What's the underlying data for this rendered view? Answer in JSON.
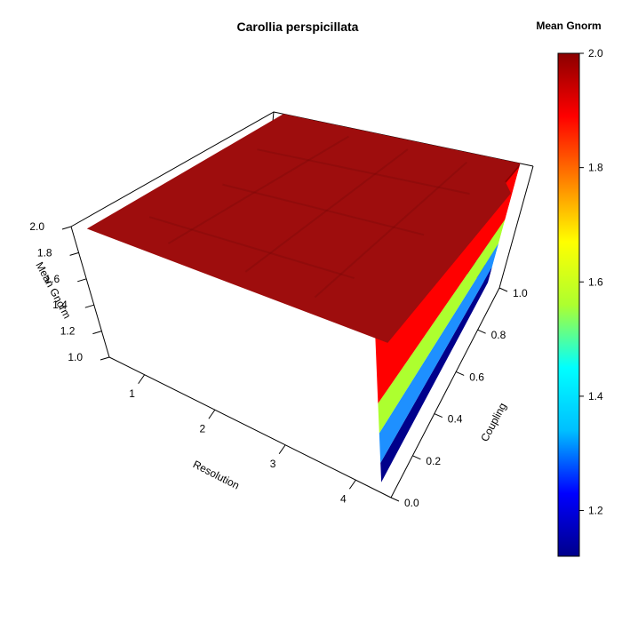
{
  "chart_data": {
    "type": "surface3d",
    "title": "Carollia perspicillata",
    "x_axis": {
      "label": "Resolution",
      "ticks": [
        "1",
        "2",
        "3",
        "4"
      ],
      "range": [
        0.5,
        4.5
      ]
    },
    "y_axis": {
      "label": "Coupling",
      "ticks": [
        "0.0",
        "0.2",
        "0.4",
        "0.6",
        "0.8",
        "1.0"
      ],
      "range": [
        0.0,
        1.0
      ]
    },
    "z_axis": {
      "label": "Mean Gnorm",
      "ticks": [
        "1.0",
        "1.2",
        "1.4",
        "1.6",
        "1.8",
        "2.0"
      ],
      "range": [
        1.0,
        2.0
      ]
    },
    "surface_value": 2.0,
    "side_bands": [
      {
        "from": 1.0,
        "to": 1.13,
        "color": "#00008B"
      },
      {
        "from": 1.13,
        "to": 1.33,
        "color": "#1E90FF"
      },
      {
        "from": 1.33,
        "to": 1.53,
        "color": "#ADFF2F"
      },
      {
        "from": 1.53,
        "to": 1.97,
        "color": "#FF0000"
      },
      {
        "from": 1.97,
        "to": 2.0,
        "color": "#8B0000"
      }
    ],
    "colorbar": {
      "title": "Mean Gnorm",
      "ticks": [
        "1.2",
        "1.4",
        "1.6",
        "1.8",
        "2.0"
      ],
      "tick_values": [
        1.2,
        1.4,
        1.6,
        1.8,
        2.0
      ],
      "range": [
        1.12,
        2.0
      ],
      "colors": [
        "#00008B",
        "#0000FF",
        "#00BFFF",
        "#00FFFF",
        "#ADFF2F",
        "#FFFF00",
        "#FF7F00",
        "#FF0000",
        "#8B0000"
      ]
    },
    "grid": false,
    "legend_position": "right"
  }
}
